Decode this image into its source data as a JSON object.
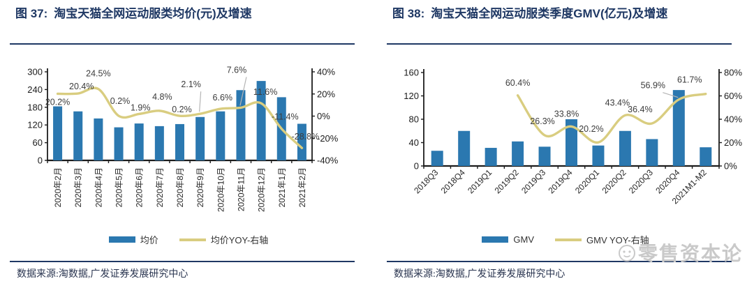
{
  "colors": {
    "bar": "#2b78b0",
    "line": "#d9cd80",
    "title": "#1f3864",
    "rule": "#1f3864",
    "axis": "#1c1c1c",
    "point_label": "#3c3c3c",
    "leader": "#b5b5b5",
    "watermark": "#c9c9c9"
  },
  "watermark": {
    "text": "零售资本论",
    "icon": "smiley-face-logo"
  },
  "figures": [
    {
      "title_prefix": "图 37:",
      "title": "淘宝天猫全网运动服类均价(元)及增速",
      "legend": [
        {
          "label": "均价",
          "swatch": "bar"
        },
        {
          "label": "均价YOY-右轴",
          "swatch": "line"
        }
      ],
      "source": "数据来源:淘数据,广发证券发展研究中心",
      "chart_data": {
        "type": "bar+line",
        "title": "淘宝天猫全网运动服类均价(元)及增速",
        "categories": [
          "2020年2月",
          "2020年3月",
          "2020年4月",
          "2020年5月",
          "2020年6月",
          "2020年7月",
          "2020年8月",
          "2020年9月",
          "2020年10月",
          "2020年11月",
          "2020年12月",
          "2021年1月",
          "2021年2月"
        ],
        "series": [
          {
            "name": "均价",
            "type": "bar",
            "axis": "left",
            "values": [
              183,
              166,
              142,
              112,
              125,
              116,
              123,
              147,
              166,
              238,
              269,
              214,
              124
            ]
          },
          {
            "name": "均价YOY-右轴",
            "type": "line",
            "axis": "right",
            "values": [
              20.2,
              20.4,
              24.5,
              0.2,
              1.9,
              4.8,
              0.2,
              2.1,
              6.6,
              7.6,
              11.6,
              -11.4,
              -28.8
            ]
          }
        ],
        "left_axis": {
          "min": 0,
          "max": 300,
          "step": 60,
          "suffix": ""
        },
        "right_axis": {
          "min": -40,
          "max": 40,
          "step": 20,
          "suffix": "%"
        },
        "grid": false,
        "legend_position": "bottom"
      }
    },
    {
      "title_prefix": "图 38:",
      "title": "淘宝天猫全网运动服类季度GMV(亿元)及增速",
      "legend": [
        {
          "label": "GMV",
          "swatch": "bar"
        },
        {
          "label": "GMV YOY-右轴",
          "swatch": "line"
        }
      ],
      "source": "数据来源:淘数据,广发证券发展研究中心",
      "chart_data": {
        "type": "bar+line",
        "title": "淘宝天猫全网运动服类季度GMV(亿元)及增速",
        "categories": [
          "2018Q3",
          "2018Q4",
          "2019Q1",
          "2019Q2",
          "2019Q3",
          "2019Q4",
          "2020Q1",
          "2020Q2",
          "2020Q3",
          "2020Q4",
          "2021M1-M2"
        ],
        "series": [
          {
            "name": "GMV",
            "type": "bar",
            "axis": "left",
            "values": [
              26,
              60,
              31,
              42,
              33,
              80,
              35,
              60,
              46,
              130,
              32
            ]
          },
          {
            "name": "GMV YOY-右轴",
            "type": "line",
            "axis": "right",
            "values": [
              null,
              null,
              null,
              60.4,
              26.3,
              33.8,
              20.2,
              43.4,
              36.4,
              56.9,
              61.7
            ]
          }
        ],
        "left_axis": {
          "min": 0,
          "max": 160,
          "step": 40,
          "suffix": ""
        },
        "right_axis": {
          "min": 0,
          "max": 80,
          "step": 20,
          "suffix": "%"
        },
        "grid": false,
        "legend_position": "bottom"
      }
    }
  ]
}
